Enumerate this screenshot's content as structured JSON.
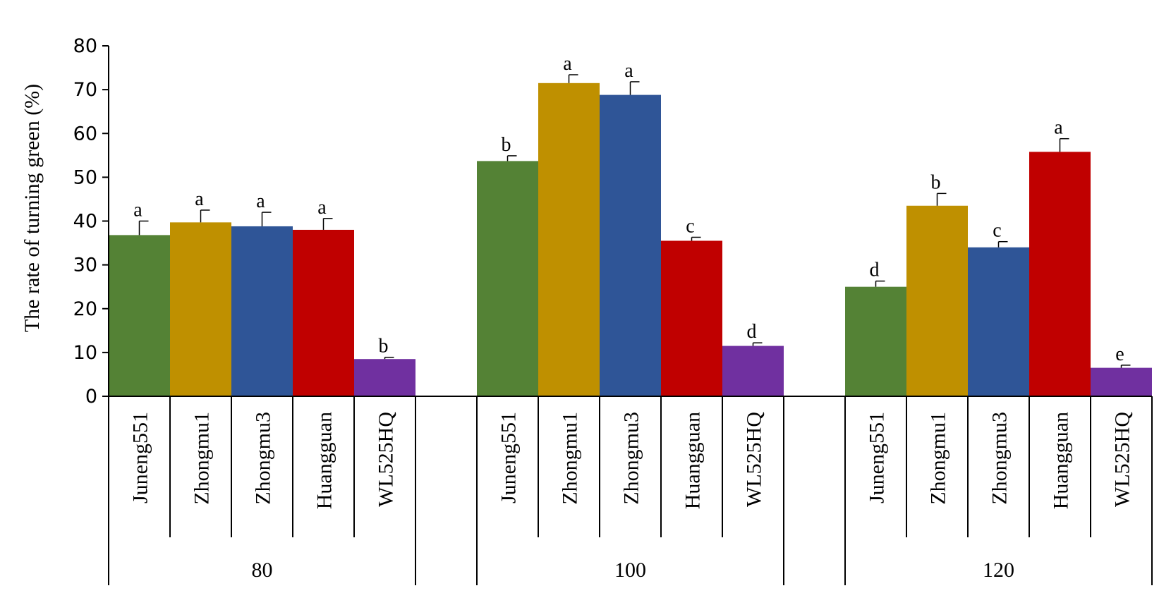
{
  "chart_data": {
    "type": "bar",
    "title": "",
    "ylabel": "The rate of turning green (%)",
    "xlabel": "",
    "ylim": [
      0,
      80
    ],
    "yticks": [
      0,
      10,
      20,
      30,
      40,
      50,
      60,
      70,
      80
    ],
    "grid": false,
    "legend": "none",
    "categories": [
      "Juneng551",
      "Zhongmu1",
      "Zhongmu3",
      "Huangguan",
      "WL525HQ"
    ],
    "colors": [
      "#548235",
      "#BF9000",
      "#2F5597",
      "#C00000",
      "#7030A0"
    ],
    "groups": [
      {
        "label": "80",
        "values": [
          36.8,
          39.7,
          38.8,
          38.0,
          8.5
        ],
        "errors": [
          3.2,
          2.8,
          3.2,
          2.6,
          0.4
        ],
        "significance": [
          "a",
          "a",
          "a",
          "a",
          "b"
        ]
      },
      {
        "label": "100",
        "values": [
          53.7,
          71.5,
          68.8,
          35.5,
          11.5
        ],
        "errors": [
          1.2,
          1.9,
          3.0,
          0.8,
          0.7
        ],
        "significance": [
          "b",
          "a",
          "a",
          "c",
          "d"
        ]
      },
      {
        "label": "120",
        "values": [
          25.0,
          43.5,
          34.0,
          55.8,
          6.5
        ],
        "errors": [
          1.3,
          2.8,
          1.3,
          3.0,
          0.6
        ],
        "significance": [
          "d",
          "b",
          "c",
          "a",
          "e"
        ]
      }
    ]
  }
}
